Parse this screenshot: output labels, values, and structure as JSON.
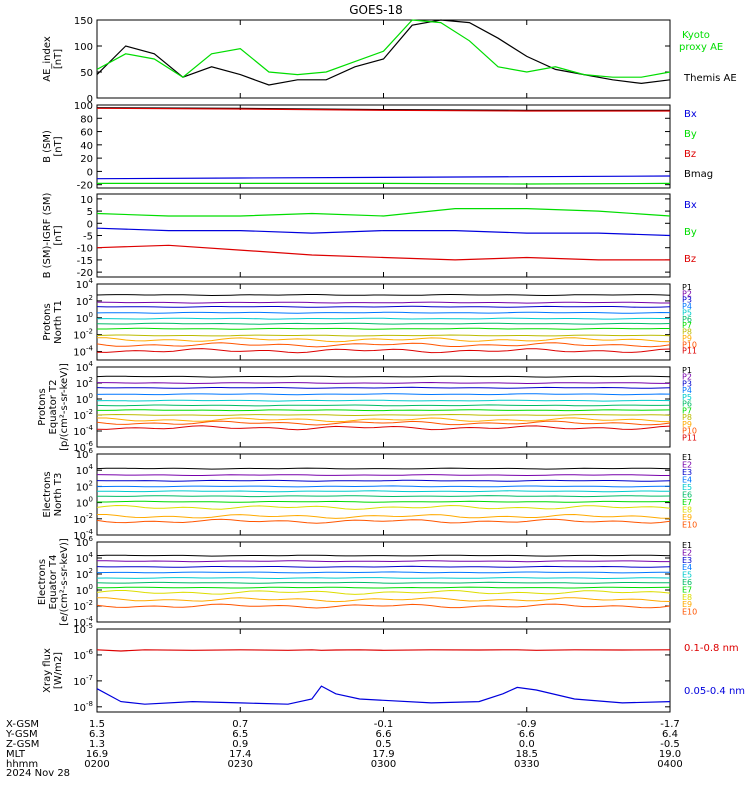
{
  "title": "GOES-18",
  "colors": {
    "black": "#000000",
    "green": "#00dd00",
    "red": "#dd0000",
    "blue": "#0000dd",
    "p_colors": [
      "#000000",
      "#7700aa",
      "#0000cc",
      "#0077ff",
      "#00cccc",
      "#00bb66",
      "#00dd00",
      "#bbbb00",
      "#ffaa00",
      "#ff5500",
      "#dd0000"
    ],
    "e_colors": [
      "#000000",
      "#7700aa",
      "#0000cc",
      "#0077ff",
      "#00cccc",
      "#00bb66",
      "#00dd00",
      "#dddd00",
      "#ffaa00",
      "#ff5500",
      "#dd0000"
    ]
  },
  "x_axis": {
    "hhmm": [
      "0200",
      "0230",
      "0300",
      "0330",
      "0400"
    ],
    "x_gsm": [
      "1.5",
      "0.7",
      "-0.1",
      "-0.9",
      "-1.7"
    ],
    "y_gsm": [
      "6.3",
      "6.5",
      "6.6",
      "6.6",
      "6.4"
    ],
    "z_gsm": [
      "1.3",
      "0.9",
      "0.5",
      "0.0",
      "-0.5"
    ],
    "mlt": [
      "16.9",
      "17.4",
      "17.9",
      "18.5",
      "19.0"
    ],
    "row_labels": [
      "X-GSM",
      "Y-GSM",
      "Z-GSM",
      "MLT",
      "hhmm"
    ],
    "date": "2024 Nov 28"
  },
  "chart_data": [
    {
      "id": "ae",
      "type": "line",
      "ylabel": [
        "AE_index",
        "[nT]"
      ],
      "ylim": [
        0,
        150
      ],
      "yticks": [
        "0",
        "50",
        "100",
        "150"
      ],
      "legend": [
        "Kyoto",
        "proxy AE",
        "Themis AE"
      ],
      "x": [
        0,
        6,
        12,
        18,
        24,
        30,
        36,
        42,
        48,
        54,
        60,
        66,
        72,
        78,
        84,
        90,
        96,
        102,
        108,
        114,
        120
      ],
      "series": [
        {
          "name": "Themis AE",
          "color": "black",
          "values": [
            45,
            100,
            85,
            40,
            60,
            45,
            25,
            35,
            35,
            60,
            75,
            140,
            150,
            145,
            115,
            80,
            55,
            45,
            35,
            28,
            35
          ]
        },
        {
          "name": "Kyoto proxy AE",
          "color": "green",
          "values": [
            55,
            85,
            75,
            40,
            85,
            95,
            50,
            45,
            50,
            70,
            90,
            150,
            145,
            110,
            60,
            50,
            60,
            45,
            40,
            40,
            50
          ]
        }
      ]
    },
    {
      "id": "bsm",
      "type": "line",
      "ylabel": [
        "B (SM)",
        "[nT]"
      ],
      "ylim": [
        -25,
        100
      ],
      "yticks": [
        "-20",
        "0",
        "20",
        "40",
        "60",
        "80",
        "100"
      ],
      "legend": [
        "Bx",
        "By",
        "Bz",
        "Bmag"
      ],
      "x": [
        0,
        30,
        60,
        90,
        120
      ],
      "series": [
        {
          "name": "Bmag",
          "color": "black",
          "values": [
            96,
            95,
            93,
            92,
            92
          ]
        },
        {
          "name": "Bz",
          "color": "red",
          "values": [
            95,
            94,
            92,
            91,
            91
          ]
        },
        {
          "name": "Bx",
          "color": "blue",
          "values": [
            -11,
            -10,
            -9,
            -8,
            -7
          ]
        },
        {
          "name": "By",
          "color": "green",
          "values": [
            -18,
            -18,
            -18,
            -19,
            -18
          ]
        }
      ]
    },
    {
      "id": "bsub",
      "type": "line",
      "ylabel": [
        "B (SM)-IGRF (SM)",
        "[nT]"
      ],
      "ylim": [
        -22,
        12
      ],
      "yticks": [
        "-20",
        "-15",
        "-10",
        "-5",
        "0",
        "5",
        "10"
      ],
      "legend": [
        "Bx",
        "By",
        "Bz"
      ],
      "x": [
        0,
        15,
        30,
        45,
        60,
        75,
        90,
        105,
        120
      ],
      "series": [
        {
          "name": "Bx",
          "color": "blue",
          "values": [
            -2,
            -3,
            -3,
            -4,
            -3,
            -3,
            -4,
            -4,
            -5
          ]
        },
        {
          "name": "By",
          "color": "green",
          "values": [
            4,
            3,
            3,
            4,
            3,
            6,
            6,
            5,
            3
          ]
        },
        {
          "name": "Bz",
          "color": "red",
          "values": [
            -10,
            -9,
            -11,
            -13,
            -14,
            -15,
            -14,
            -15,
            -15
          ]
        }
      ]
    },
    {
      "id": "p1",
      "type": "line",
      "log": true,
      "ylabel": [
        "Protons",
        "North T1"
      ],
      "ylim_exp": [
        -5,
        4
      ],
      "ytick_exps": [
        -4,
        -2,
        0,
        2,
        4
      ],
      "legend": [
        "P1",
        "P2",
        "P3",
        "P4",
        "P5",
        "P6",
        "P7",
        "P8",
        "P9",
        "P10",
        "P11"
      ],
      "levels_exp": [
        2.7,
        1.8,
        1.3,
        0.6,
        -0.1,
        -0.7,
        -1.3,
        -2.1,
        -2.6,
        -3.2,
        -3.9
      ]
    },
    {
      "id": "p2",
      "type": "line",
      "log": true,
      "ylabel": [
        "Protons",
        "Equator T2",
        "[p/(cm²-s-sr-keV)]"
      ],
      "ylim_exp": [
        -6,
        4
      ],
      "ytick_exps": [
        -6,
        -4,
        -2,
        0,
        2,
        4
      ],
      "legend": [
        "P1",
        "P2",
        "P3",
        "P4",
        "P5",
        "P6",
        "P7",
        "P8",
        "P9",
        "P10",
        "P11"
      ],
      "levels_exp": [
        2.8,
        2.0,
        1.4,
        0.6,
        -0.2,
        -0.8,
        -1.4,
        -2.0,
        -2.6,
        -3.0,
        -3.6
      ]
    },
    {
      "id": "e1",
      "type": "line",
      "log": true,
      "ylabel": [
        "Electrons",
        "North T3"
      ],
      "ylim_exp": [
        -4,
        6
      ],
      "ytick_exps": [
        -4,
        -2,
        0,
        2,
        4,
        6
      ],
      "legend": [
        "E1",
        "E2",
        "E3",
        "E4",
        "E5",
        "E6",
        "E7",
        "E8",
        "E9",
        "E10"
      ],
      "levels_exp": [
        4.2,
        3.4,
        2.7,
        2.0,
        1.4,
        0.8,
        0.1,
        -0.6,
        -1.7,
        -2.3
      ]
    },
    {
      "id": "e2",
      "type": "line",
      "log": true,
      "ylabel": [
        "Electrons",
        "Equator T4",
        "[e/(cm²-s-sr-keV)]"
      ],
      "ylim_exp": [
        -4,
        6
      ],
      "ytick_exps": [
        -4,
        -2,
        0,
        2,
        4,
        6
      ],
      "legend": [
        "E1",
        "E2",
        "E3",
        "E4",
        "E5",
        "E6",
        "E7",
        "E8",
        "E9",
        "E10"
      ],
      "levels_exp": [
        4.3,
        3.6,
        2.9,
        2.2,
        1.5,
        0.9,
        0.3,
        -0.3,
        -1.2,
        -2.0
      ]
    },
    {
      "id": "xray",
      "type": "line",
      "log": true,
      "ylabel": [
        "Xray flux",
        "[W/m2]"
      ],
      "ylim_exp": [
        -8.2,
        -5
      ],
      "ytick_exps": [
        -8,
        -7,
        -6,
        -5
      ],
      "legend": [
        "0.1-0.8 nm",
        "0.05-0.4 nm"
      ],
      "x": [
        0,
        5,
        10,
        20,
        30,
        40,
        45,
        47,
        50,
        55,
        60,
        70,
        80,
        85,
        88,
        92,
        100,
        110,
        120
      ],
      "series": [
        {
          "name": "0.1-0.8 nm",
          "color": "red",
          "values": [
            -5.8,
            -5.85,
            -5.8,
            -5.82,
            -5.8,
            -5.82,
            -5.8,
            -5.82,
            -5.81,
            -5.8,
            -5.82,
            -5.8,
            -5.81,
            -5.8,
            -5.8,
            -5.82,
            -5.8,
            -5.81,
            -5.8
          ]
        },
        {
          "name": "0.05-0.4 nm",
          "color": "blue",
          "values": [
            -7.3,
            -7.8,
            -7.9,
            -7.8,
            -7.85,
            -7.9,
            -7.7,
            -7.2,
            -7.5,
            -7.7,
            -7.75,
            -7.85,
            -7.8,
            -7.5,
            -7.25,
            -7.35,
            -7.7,
            -7.85,
            -7.8
          ]
        }
      ]
    }
  ]
}
